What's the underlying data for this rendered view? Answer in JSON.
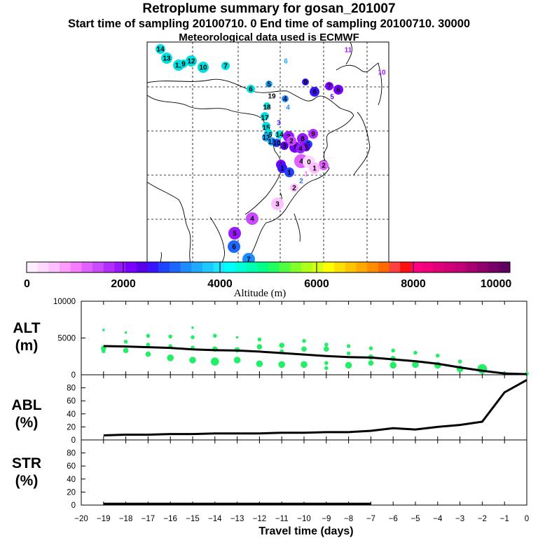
{
  "header": {
    "title": "Retroplume summary for gosan_201007",
    "sampling": "Start time of sampling 20100710.    0     End time of sampling 20100710. 30000",
    "met": "Meteorological data used is ECMWF"
  },
  "colorbar": {
    "title": "Altitude (m)",
    "ticks": [
      "0",
      "2000",
      "4000",
      "6000",
      "8000",
      "10000"
    ],
    "colors": [
      "#ffeeff",
      "#ffd9ff",
      "#ffc0ff",
      "#ff9cff",
      "#f67dff",
      "#e160ff",
      "#c84bff",
      "#b22eff",
      "#9a18ff",
      "#7a00ff",
      "#5a00e8",
      "#3a14ff",
      "#1e44ff",
      "#1e66ff",
      "#1e8cff",
      "#1eaaff",
      "#1ec8ff",
      "#1ee4ff",
      "#00ffff",
      "#00ffd8",
      "#00ffb0",
      "#00ff88",
      "#20ff60",
      "#50ff40",
      "#80ff28",
      "#b0ff18",
      "#d8ff10",
      "#ffff00",
      "#ffe000",
      "#ffc400",
      "#ffa800",
      "#ff8c00",
      "#ff6a00",
      "#ff4040",
      "#ff1010",
      "#ff0080",
      "#f0007a",
      "#e00078",
      "#d00076",
      "#c00074",
      "#a80070",
      "#90006c",
      "#780068",
      "#600060"
    ]
  },
  "map": {
    "labels": [
      {
        "t": "14",
        "x": 229,
        "y": 70,
        "c": "#00e0e0",
        "r": 7
      },
      {
        "t": "13",
        "x": 238,
        "y": 83,
        "c": "#00e0e0",
        "r": 8
      },
      {
        "t": "11",
        "x": 255,
        "y": 93,
        "c": "#00e0e0",
        "r": 8
      },
      {
        "t": "9",
        "x": 262,
        "y": 91,
        "c": "#00e0e0",
        "r": 6
      },
      {
        "t": "12",
        "x": 273,
        "y": 87,
        "c": "#00e0e0",
        "r": 8
      },
      {
        "t": "10",
        "x": 290,
        "y": 96,
        "c": "#00e0e0",
        "r": 8
      },
      {
        "t": "7",
        "x": 322,
        "y": 94,
        "c": "#00e0e0",
        "r": 6
      },
      {
        "t": "6",
        "x": 408,
        "y": 87,
        "c": "#1eaaff",
        "r": 0
      },
      {
        "t": "11",
        "x": 497,
        "y": 71,
        "c": "#9a18ff",
        "r": 0
      },
      {
        "t": "10",
        "x": 545,
        "y": 103,
        "c": "#9a18ff",
        "r": 0
      },
      {
        "t": "6",
        "x": 358,
        "y": 127,
        "c": "#00e0e0",
        "r": 6
      },
      {
        "t": "5",
        "x": 384,
        "y": 120,
        "c": "#1eaaff",
        "r": 5
      },
      {
        "t": "19",
        "x": 388,
        "y": 135,
        "c": "#000000",
        "r": 0
      },
      {
        "t": "9",
        "x": 436,
        "y": 117,
        "c": "#3a14ff",
        "r": 5
      },
      {
        "t": "8",
        "x": 449,
        "y": 131,
        "c": "#3a14ff",
        "r": 7
      },
      {
        "t": "7",
        "x": 470,
        "y": 123,
        "c": "#7a00ff",
        "r": 6
      },
      {
        "t": "6",
        "x": 483,
        "y": 128,
        "c": "#7a00ff",
        "r": 7
      },
      {
        "t": "5",
        "x": 474,
        "y": 138,
        "c": "#5a00e8",
        "r": 0
      },
      {
        "t": "4",
        "x": 407,
        "y": 141,
        "c": "#1e8cff",
        "r": 5
      },
      {
        "t": "18",
        "x": 381,
        "y": 151,
        "c": "#00e0e0",
        "r": 5
      },
      {
        "t": "4",
        "x": 411,
        "y": 153,
        "c": "#1e8cff",
        "r": 0
      },
      {
        "t": "17",
        "x": 378,
        "y": 166,
        "c": "#00e0e0",
        "r": 6
      },
      {
        "t": "15",
        "x": 380,
        "y": 180,
        "c": "#00e0e0",
        "r": 6
      },
      {
        "t": "16",
        "x": 383,
        "y": 190,
        "c": "#00e0e0",
        "r": 6
      },
      {
        "t": "14",
        "x": 399,
        "y": 192,
        "c": "#00e0e0",
        "r": 6
      },
      {
        "t": "3",
        "x": 398,
        "y": 175,
        "c": "#3a14ff",
        "r": 0
      },
      {
        "t": "13",
        "x": 380,
        "y": 196,
        "c": "#1eaaff",
        "r": 6
      },
      {
        "t": "12",
        "x": 388,
        "y": 202,
        "c": "#1eaaff",
        "r": 6
      },
      {
        "t": "10",
        "x": 395,
        "y": 204,
        "c": "#1e44ff",
        "r": 6
      },
      {
        "t": "3",
        "x": 412,
        "y": 195,
        "c": "#9a18ff",
        "r": 8
      },
      {
        "t": "9",
        "x": 447,
        "y": 191,
        "c": "#b22eff",
        "r": 7
      },
      {
        "t": "8",
        "x": 432,
        "y": 198,
        "c": "#9a18ff",
        "r": 8
      },
      {
        "t": "7",
        "x": 421,
        "y": 210,
        "c": "#7a00ff",
        "r": 8
      },
      {
        "t": "5",
        "x": 440,
        "y": 206,
        "c": "#1e44ff",
        "r": 6
      },
      {
        "t": "6",
        "x": 437,
        "y": 210,
        "c": "#5a00e8",
        "r": 6
      },
      {
        "t": "4",
        "x": 429,
        "y": 212,
        "c": "#9a18ff",
        "r": 7
      },
      {
        "t": "1",
        "x": 403,
        "y": 208,
        "c": "#000000",
        "r": 0
      },
      {
        "t": "3",
        "x": 406,
        "y": 208,
        "c": "#5a00e8",
        "r": 6
      },
      {
        "t": "2",
        "x": 416,
        "y": 201,
        "c": "#c84bff",
        "r": 7
      },
      {
        "t": "1",
        "x": 401,
        "y": 235,
        "c": "#7a00ff",
        "r": 7
      },
      {
        "t": "4",
        "x": 430,
        "y": 230,
        "c": "#e160ff",
        "r": 10
      },
      {
        "t": "0",
        "x": 441,
        "y": 231,
        "c": "#ffd9ff",
        "r": 9
      },
      {
        "t": "2",
        "x": 462,
        "y": 236,
        "c": "#e160ff",
        "r": 7
      },
      {
        "t": "1",
        "x": 449,
        "y": 240,
        "c": "#ffc0ff",
        "r": 8
      },
      {
        "t": "1",
        "x": 403,
        "y": 240,
        "c": "#3a14ff",
        "r": 7
      },
      {
        "t": "1",
        "x": 437,
        "y": 248,
        "c": "#f67dff",
        "r": 0
      },
      {
        "t": "1",
        "x": 413,
        "y": 246,
        "c": "#1e44ff",
        "r": 7
      },
      {
        "t": "2",
        "x": 430,
        "y": 258,
        "c": "#1e66ff",
        "r": 0
      },
      {
        "t": "2",
        "x": 420,
        "y": 268,
        "c": "#ffc0ff",
        "r": 6
      },
      {
        "t": "3",
        "x": 396,
        "y": 291,
        "c": "#ffc0ff",
        "r": 9
      },
      {
        "t": "4",
        "x": 360,
        "y": 312,
        "c": "#c84bff",
        "r": 9
      },
      {
        "t": "5",
        "x": 335,
        "y": 333,
        "c": "#9a18ff",
        "r": 9
      },
      {
        "t": "6",
        "x": 334,
        "y": 352,
        "c": "#1e66ff",
        "r": 9
      },
      {
        "t": "7",
        "x": 355,
        "y": 370,
        "c": "#1e8cff",
        "r": 9
      }
    ]
  },
  "chart_data": [
    {
      "type": "scatter+line",
      "panel": "ALT",
      "ylabel": "ALT (m)",
      "ylim": [
        0,
        10000
      ],
      "yticks": [
        "0",
        "5000",
        "10000"
      ],
      "xlim": [
        -20,
        0
      ],
      "line": {
        "x": [
          -19,
          -18,
          -17,
          -16,
          -15,
          -14,
          -13,
          -12,
          -11,
          -10,
          -9,
          -8,
          -7,
          -6,
          -5,
          -4,
          -3,
          -2,
          -1,
          0
        ],
        "y": [
          3900,
          3850,
          3750,
          3650,
          3450,
          3350,
          3300,
          3150,
          2950,
          2750,
          2550,
          2400,
          2350,
          2100,
          1850,
          1500,
          1000,
          550,
          180,
          80
        ]
      },
      "clusters": [
        {
          "x": -19,
          "points": [
            [
              6100,
              1
            ],
            [
              3600,
              3
            ],
            [
              3200,
              2
            ]
          ]
        },
        {
          "x": -18,
          "points": [
            [
              5750,
              1
            ],
            [
              4500,
              2
            ],
            [
              3300,
              3
            ]
          ]
        },
        {
          "x": -17,
          "points": [
            [
              5300,
              2
            ],
            [
              4100,
              2
            ],
            [
              2800,
              3
            ]
          ]
        },
        {
          "x": -16,
          "points": [
            [
              5200,
              2
            ],
            [
              3900,
              2
            ],
            [
              2300,
              4
            ]
          ]
        },
        {
          "x": -15,
          "points": [
            [
              6400,
              1
            ],
            [
              5100,
              2
            ],
            [
              3700,
              2
            ],
            [
              2000,
              4
            ]
          ]
        },
        {
          "x": -14,
          "points": [
            [
              5300,
              2
            ],
            [
              3500,
              3
            ],
            [
              1800,
              5
            ]
          ]
        },
        {
          "x": -13,
          "points": [
            [
              5100,
              1
            ],
            [
              3400,
              3
            ],
            [
              2000,
              4
            ]
          ]
        },
        {
          "x": -12,
          "points": [
            [
              4800,
              2
            ],
            [
              3800,
              3
            ],
            [
              1500,
              4
            ]
          ]
        },
        {
          "x": -11,
          "points": [
            [
              4000,
              3
            ],
            [
              3200,
              2
            ],
            [
              1400,
              4
            ]
          ]
        },
        {
          "x": -10,
          "points": [
            [
              4600,
              2
            ],
            [
              3500,
              3
            ],
            [
              1400,
              4
            ]
          ]
        },
        {
          "x": -9,
          "points": [
            [
              4100,
              2
            ],
            [
              3500,
              3
            ],
            [
              1600,
              2
            ],
            [
              900,
              2
            ]
          ]
        },
        {
          "x": -8,
          "points": [
            [
              3900,
              2
            ],
            [
              2900,
              2
            ],
            [
              1300,
              4
            ]
          ]
        },
        {
          "x": -7,
          "points": [
            [
              3600,
              2
            ],
            [
              2400,
              3
            ],
            [
              1600,
              3
            ]
          ]
        },
        {
          "x": -6,
          "points": [
            [
              3300,
              2
            ],
            [
              2200,
              3
            ],
            [
              1300,
              4
            ]
          ]
        },
        {
          "x": -5,
          "points": [
            [
              3000,
              2
            ],
            [
              1400,
              4
            ]
          ]
        },
        {
          "x": -4,
          "points": [
            [
              2600,
              2
            ],
            [
              1300,
              4
            ]
          ]
        },
        {
          "x": -3,
          "points": [
            [
              1800,
              2
            ],
            [
              800,
              4
            ]
          ]
        },
        {
          "x": -2,
          "points": [
            [
              800,
              6
            ]
          ]
        },
        {
          "x": -1,
          "points": [
            [
              200,
              2
            ]
          ]
        },
        {
          "x": 0,
          "points": [
            [
              150,
              2
            ]
          ]
        }
      ]
    },
    {
      "type": "line",
      "panel": "ABL",
      "ylabel": "ABL (%)",
      "ylim": [
        0,
        100
      ],
      "yticks": [
        "0",
        "20",
        "40",
        "60",
        "80"
      ],
      "xlim": [
        -20,
        0
      ],
      "x": [
        -19,
        -18,
        -17,
        -16,
        -15,
        -14,
        -13,
        -12,
        -11,
        -10,
        -9,
        -8,
        -7,
        -6,
        -5,
        -4,
        -3,
        -2,
        -1,
        0
      ],
      "y": [
        7,
        8,
        8,
        9,
        9,
        10,
        10,
        10,
        11,
        11,
        12,
        12,
        14,
        18,
        16,
        20,
        23,
        28,
        73,
        92
      ]
    },
    {
      "type": "line",
      "panel": "STR",
      "ylabel": "STR (%)",
      "ylim": [
        0,
        100
      ],
      "yticks": [
        "0",
        "20",
        "40",
        "60",
        "80"
      ],
      "xlim": [
        -20,
        0
      ],
      "x": [
        -19,
        -18,
        -17,
        -16,
        -15,
        -14,
        -13,
        -12,
        -11,
        -10,
        -9,
        -8,
        -7
      ],
      "y": [
        2,
        2,
        2,
        2,
        2,
        2,
        2,
        2,
        2,
        2,
        2,
        2,
        2
      ]
    }
  ],
  "panels": {
    "alt": {
      "label1": "ALT",
      "label2": "(m)"
    },
    "abl": {
      "label1": "ABL",
      "label2": "(%)"
    },
    "str": {
      "label1": "STR",
      "label2": "(%)"
    }
  },
  "xaxis": {
    "ticks": [
      "−20",
      "−19",
      "−18",
      "−17",
      "−16",
      "−15",
      "−14",
      "−13",
      "−12",
      "−11",
      "−10",
      "−9",
      "−8",
      "−7",
      "−6",
      "−5",
      "−4",
      "−3",
      "−2",
      "−1",
      "0"
    ],
    "title": "Travel time (days)"
  },
  "style": {
    "point_color": "#22ee66",
    "line_color": "#000000"
  }
}
